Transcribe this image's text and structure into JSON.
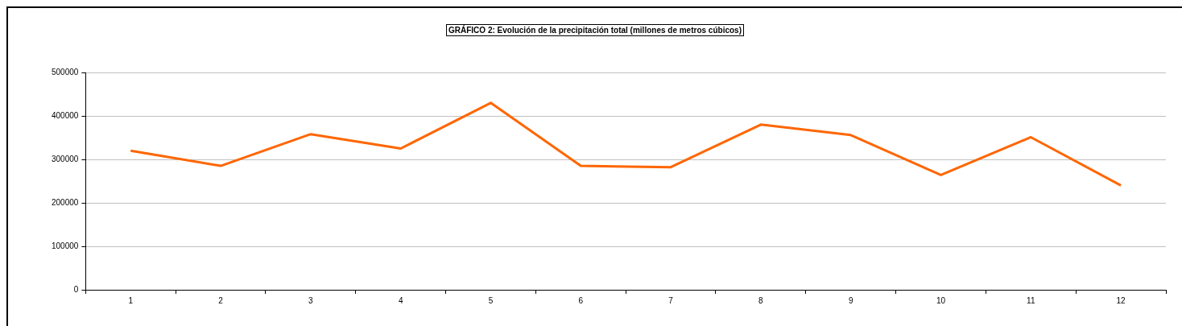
{
  "chart_data": {
    "type": "line",
    "title": "GRÁFICO 2: Evolución de la precipitación total (millones de metros cúbicos)",
    "categories": [
      "1",
      "2",
      "3",
      "4",
      "5",
      "6",
      "7",
      "8",
      "9",
      "10",
      "11",
      "12"
    ],
    "series": [
      {
        "color": "#ff6600",
        "values": [
          320000,
          285000,
          358000,
          325000,
          430000,
          285000,
          282000,
          380000,
          356000,
          264000,
          351000,
          240000
        ]
      }
    ],
    "ylim": [
      0,
      500000
    ],
    "yticks": [
      0,
      100000,
      200000,
      300000,
      400000,
      500000
    ],
    "grid": "y",
    "legend": false,
    "marker": "none",
    "line_style": "solid"
  }
}
